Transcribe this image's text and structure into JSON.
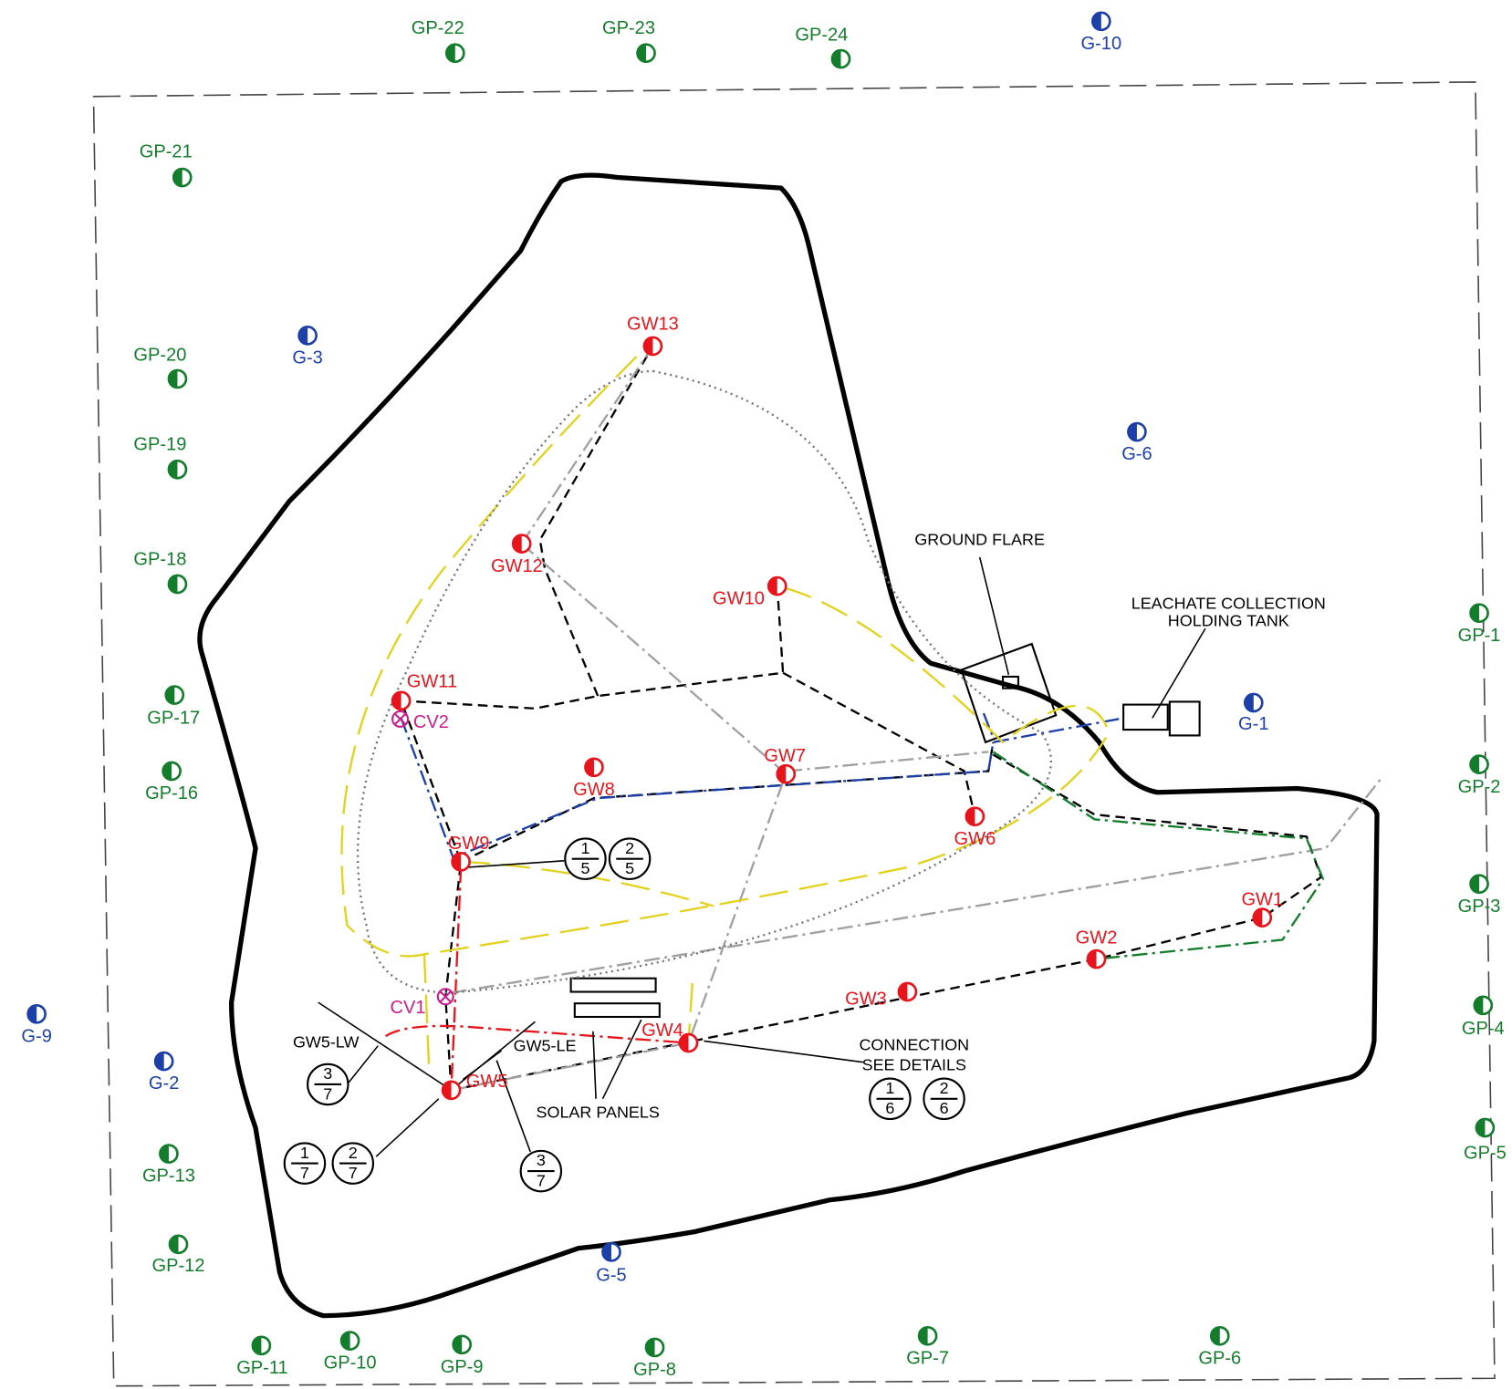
{
  "gas_probes": [
    "GP-1",
    "GP-2",
    "GP-3",
    "GP-4",
    "GP-5",
    "GP-6",
    "GP-7",
    "GP-8",
    "GP-9",
    "GP-10",
    "GP-11",
    "GP-12",
    "GP-13",
    "GP-16",
    "GP-17",
    "GP-18",
    "GP-19",
    "GP-20",
    "GP-21",
    "GP-22",
    "GP-23",
    "GP-24"
  ],
  "groundwater_wells": [
    "G-1",
    "G-2",
    "G-3",
    "G-5",
    "G-6",
    "G-9",
    "G-10"
  ],
  "gas_wells": [
    "GW1",
    "GW2",
    "GW3",
    "GW4",
    "GW5",
    "GW6",
    "GW7",
    "GW8",
    "GW9",
    "GW10",
    "GW11",
    "GW12",
    "GW13"
  ],
  "valves": [
    "CV1",
    "CV2"
  ],
  "callouts": {
    "ground_flare": "GROUND FLARE",
    "tank_line1": "LEACHATE COLLECTION",
    "tank_line2": "HOLDING TANK",
    "connection_line1": "CONNECTION",
    "connection_line2": "SEE DETAILS",
    "solar_panels": "SOLAR PANELS",
    "gw5_lw": "GW5-LW",
    "gw5_le": "GW5-LE"
  },
  "detail_refs": [
    {
      "top": "1",
      "bottom": "5"
    },
    {
      "top": "2",
      "bottom": "5"
    },
    {
      "top": "1",
      "bottom": "6"
    },
    {
      "top": "2",
      "bottom": "6"
    },
    {
      "top": "3",
      "bottom": "7"
    },
    {
      "top": "1",
      "bottom": "7"
    },
    {
      "top": "2",
      "bottom": "7"
    },
    {
      "top": "3",
      "bottom": "7"
    }
  ]
}
